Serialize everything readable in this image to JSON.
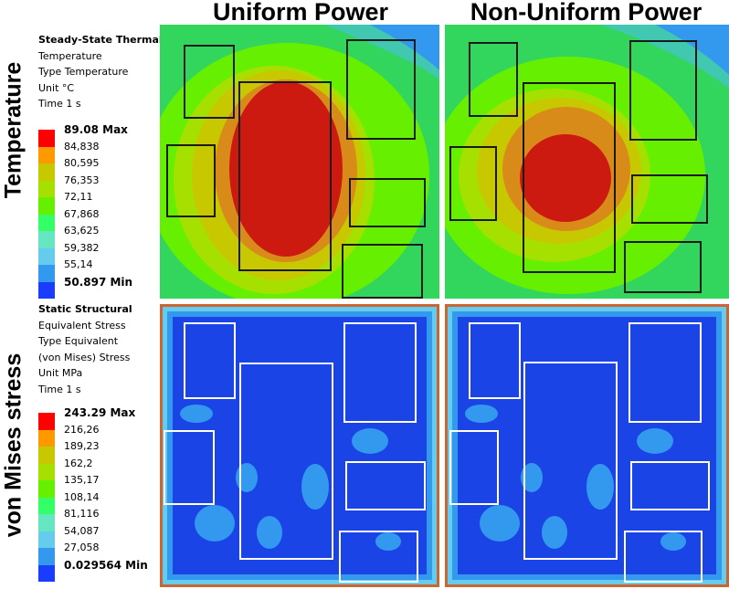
{
  "columns": [
    "Uniform Power",
    "Non-Uniform Power"
  ],
  "rows": [
    "Temperature",
    "von Mises stress"
  ],
  "thermal_legend": {
    "title": "Steady-State Thermal",
    "lines": [
      "Temperature",
      "Type  Temperature",
      "Unit  °C",
      "Time  1 s"
    ],
    "max": "89.08 Max",
    "ticks": [
      "84,838",
      "80,595",
      "76,353",
      "72,11",
      "67,868",
      "63,625",
      "59,382",
      "55,14"
    ],
    "min": "50.897 Min"
  },
  "stress_legend": {
    "title": "Static Structural",
    "lines": [
      "Equivalent Stress",
      "Type  Equivalent",
      "(von Mises) Stress",
      "Unit  MPa",
      "Time  1 s"
    ],
    "max": "243.29 Max",
    "ticks": [
      "216,26",
      "189,23",
      "162,2",
      "135,17",
      "108,14",
      "81,116",
      "54,087",
      "27,058"
    ],
    "min": "0.029564 Min"
  },
  "colors": {
    "scale": [
      "#ff0000",
      "#ff9900",
      "#c8c800",
      "#a6e000",
      "#66f000",
      "#33ff66",
      "#66e6c0",
      "#66ccee",
      "#3399ee",
      "#1a3cff"
    ],
    "thermal_bg": "#33d65c",
    "stress_bg": "#1a44e6",
    "box_thermal": "#1a1a1a",
    "box_stress": "#ffffff"
  }
}
